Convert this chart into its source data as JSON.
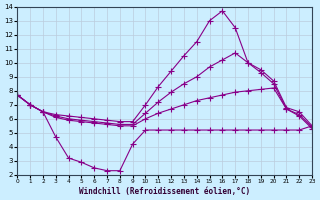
{
  "xlabel": "Windchill (Refroidissement éolien,°C)",
  "bg_color": "#cceeff",
  "grid_color": "#bbccdd",
  "line_color": "#880088",
  "xlim": [
    0,
    23
  ],
  "ylim": [
    2,
    14
  ],
  "xticks": [
    0,
    1,
    2,
    3,
    4,
    5,
    6,
    7,
    8,
    9,
    10,
    11,
    12,
    13,
    14,
    15,
    16,
    17,
    18,
    19,
    20,
    21,
    22,
    23
  ],
  "yticks": [
    2,
    3,
    4,
    5,
    6,
    7,
    8,
    9,
    10,
    11,
    12,
    13,
    14
  ],
  "lines": [
    {
      "x": [
        0,
        1,
        2,
        3,
        4,
        5,
        6,
        7,
        8,
        9,
        10,
        11,
        12,
        13,
        14,
        15,
        16,
        17,
        18,
        19,
        20,
        21,
        22,
        23
      ],
      "y": [
        7.7,
        7.0,
        6.5,
        4.7,
        3.2,
        2.9,
        2.5,
        2.3,
        2.3,
        4.2,
        5.2,
        5.2,
        5.2,
        5.2,
        5.2,
        5.2,
        5.2,
        5.2,
        5.2,
        5.2,
        5.2,
        5.2,
        5.2,
        5.5
      ]
    },
    {
      "x": [
        0,
        1,
        2,
        3,
        4,
        5,
        6,
        7,
        8,
        9,
        10,
        11,
        12,
        13,
        14,
        15,
        16,
        17,
        18,
        19,
        20,
        21,
        22,
        23
      ],
      "y": [
        7.7,
        7.0,
        6.5,
        6.3,
        6.2,
        6.1,
        6.0,
        5.9,
        5.8,
        5.8,
        7.0,
        8.3,
        9.4,
        10.5,
        11.5,
        13.0,
        13.7,
        12.5,
        10.0,
        9.5,
        8.7,
        6.8,
        6.5,
        5.5
      ]
    },
    {
      "x": [
        0,
        1,
        2,
        3,
        4,
        5,
        6,
        7,
        8,
        9,
        10,
        11,
        12,
        13,
        14,
        15,
        16,
        17,
        18,
        19,
        20,
        21,
        22,
        23
      ],
      "y": [
        7.7,
        7.0,
        6.5,
        6.2,
        6.0,
        5.9,
        5.8,
        5.7,
        5.6,
        5.6,
        6.4,
        7.2,
        7.9,
        8.5,
        9.0,
        9.7,
        10.2,
        10.7,
        10.0,
        9.3,
        8.5,
        6.7,
        6.3,
        5.4
      ]
    },
    {
      "x": [
        0,
        1,
        2,
        3,
        4,
        5,
        6,
        7,
        8,
        9,
        10,
        11,
        12,
        13,
        14,
        15,
        16,
        17,
        18,
        19,
        20,
        21,
        22,
        23
      ],
      "y": [
        7.7,
        7.0,
        6.5,
        6.1,
        5.9,
        5.8,
        5.7,
        5.6,
        5.5,
        5.5,
        6.0,
        6.4,
        6.7,
        7.0,
        7.3,
        7.5,
        7.7,
        7.9,
        8.0,
        8.1,
        8.2,
        6.7,
        6.2,
        5.3
      ]
    }
  ]
}
